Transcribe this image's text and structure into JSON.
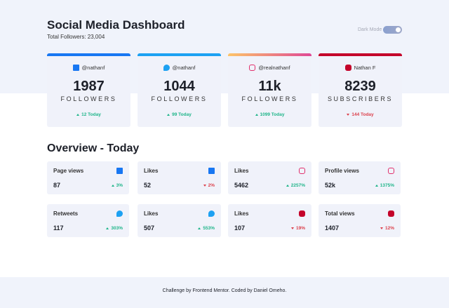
{
  "header": {
    "title": "Social Media Dashboard",
    "subtitle": "Total Followers: 23,004",
    "toggle_label": "Dark Mode"
  },
  "cards": [
    {
      "platform": "facebook",
      "handle": "@nathanf",
      "count": "1987",
      "unit": "FOLLOWERS",
      "change": "12 Today",
      "trend": "up"
    },
    {
      "platform": "twitter",
      "handle": "@nathanf",
      "count": "1044",
      "unit": "FOLLOWERS",
      "change": "99 Today",
      "trend": "up"
    },
    {
      "platform": "instagram",
      "handle": "@realnathanf",
      "count": "11k",
      "unit": "FOLLOWERS",
      "change": "1099 Today",
      "trend": "up"
    },
    {
      "platform": "youtube",
      "handle": "Nathan F",
      "count": "8239",
      "unit": "SUBSCRIBERS",
      "change": "144 Today",
      "trend": "down"
    }
  ],
  "overview": {
    "title": "Overview - Today",
    "items": [
      {
        "label": "Page views",
        "platform": "facebook",
        "value": "87",
        "change": "3%",
        "trend": "up"
      },
      {
        "label": "Likes",
        "platform": "facebook",
        "value": "52",
        "change": "2%",
        "trend": "down"
      },
      {
        "label": "Likes",
        "platform": "instagram",
        "value": "5462",
        "change": "2257%",
        "trend": "up"
      },
      {
        "label": "Profile views",
        "platform": "instagram",
        "value": "52k",
        "change": "1375%",
        "trend": "up"
      },
      {
        "label": "Retweets",
        "platform": "twitter",
        "value": "117",
        "change": "303%",
        "trend": "up"
      },
      {
        "label": "Likes",
        "platform": "twitter",
        "value": "507",
        "change": "553%",
        "trend": "up"
      },
      {
        "label": "Likes",
        "platform": "youtube",
        "value": "107",
        "change": "19%",
        "trend": "down"
      },
      {
        "label": "Total views",
        "platform": "youtube",
        "value": "1407",
        "change": "12%",
        "trend": "down"
      }
    ]
  },
  "footer": {
    "text1": "Challenge by ",
    "link1": "Frontend Mentor",
    "text2": ". Coded by ",
    "link2": "Daniel Omeho",
    "text3": "."
  }
}
